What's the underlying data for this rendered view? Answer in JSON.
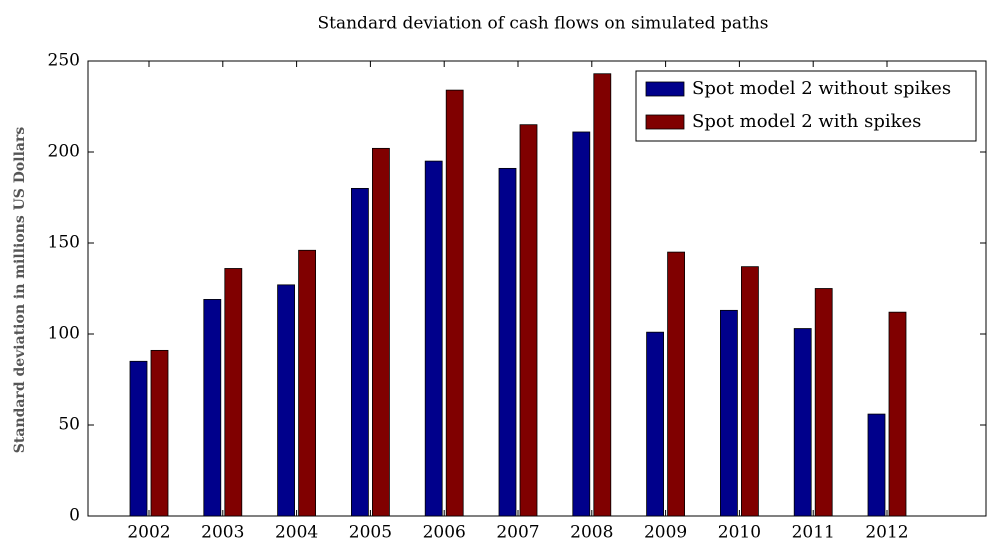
{
  "chart_data": {
    "type": "bar",
    "title": "Standard deviation of cash flows on simulated paths",
    "y_label": "Standard deviation in millions US Dollars",
    "categories": [
      "2002",
      "2003",
      "2004",
      "2005",
      "2006",
      "2007",
      "2008",
      "2009",
      "2010",
      "2011",
      "2012"
    ],
    "series": [
      {
        "name": "Spot model 2 without spikes",
        "color": "#00008b",
        "values": [
          85,
          119,
          127,
          180,
          195,
          191,
          211,
          101,
          113,
          103,
          56
        ]
      },
      {
        "name": "Spot model 2 with spikes",
        "color": "#800000",
        "values": [
          91,
          136,
          146,
          202,
          234,
          215,
          243,
          145,
          137,
          125,
          112
        ]
      }
    ],
    "ylim": [
      0,
      250
    ],
    "yticks": [
      0,
      50,
      100,
      150,
      200,
      250
    ],
    "legend": "upper right"
  }
}
